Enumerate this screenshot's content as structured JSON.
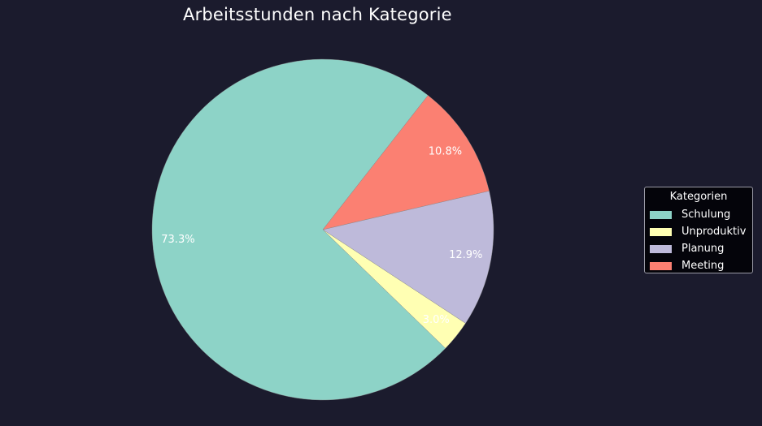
{
  "chart_data": {
    "type": "pie",
    "title": "Arbeitsstunden nach Kategorie",
    "slices": [
      {
        "label": "Schulung",
        "value": 73.3,
        "pct_label": "73.3%",
        "color": "#8dd3c7"
      },
      {
        "label": "Unproduktiv",
        "value": 3.0,
        "pct_label": "3.0%",
        "color": "#ffffb3"
      },
      {
        "label": "Planung",
        "value": 12.9,
        "pct_label": "12.9%",
        "color": "#bebada"
      },
      {
        "label": "Meeting",
        "value": 10.8,
        "pct_label": "10.8%",
        "color": "#fb8072"
      }
    ],
    "legend": {
      "title": "Kategorien",
      "placement": "right",
      "entries": [
        "Schulung",
        "Unproduktiv",
        "Planung",
        "Meeting"
      ]
    },
    "background": "#1b1b2d"
  }
}
